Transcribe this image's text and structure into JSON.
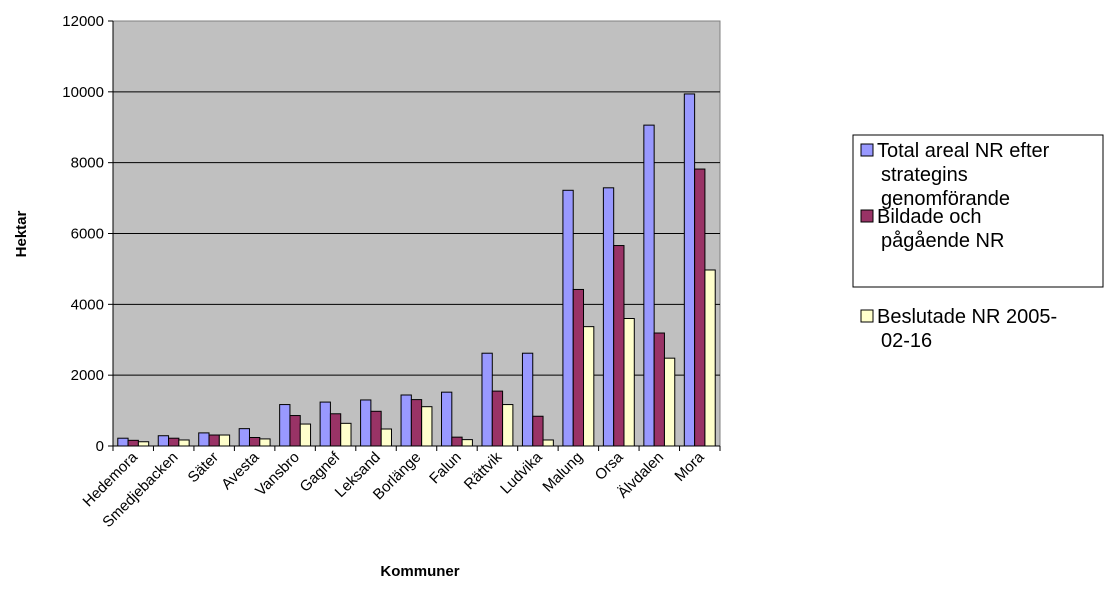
{
  "chart_data": {
    "type": "bar",
    "xlabel": "Kommuner",
    "ylabel": "Hektar",
    "ylim": [
      0,
      12000
    ],
    "yticks": [
      0,
      2000,
      4000,
      6000,
      8000,
      10000,
      12000
    ],
    "grid": true,
    "legend_position": "right",
    "categories": [
      "Hedemora",
      "Smedjebacken",
      "Säter",
      "Avesta",
      "Vansbro",
      "Gagnef",
      "Leksand",
      "Borlänge",
      "Falun",
      "Rättvik",
      "Ludvika",
      "Malung",
      "Orsa",
      "Älvdalen",
      "Mora"
    ],
    "series": [
      {
        "name": "Total areal NR efter strategins genomförande",
        "color": "#9999ff",
        "legend_lines": [
          "Total areal NR efter",
          "strategins",
          "genomförande"
        ],
        "values": [
          220,
          290,
          370,
          490,
          1170,
          1240,
          1300,
          1440,
          1520,
          2620,
          2620,
          7220,
          7290,
          9060,
          9940
        ]
      },
      {
        "name": "Bildade och pågående NR",
        "color": "#993366",
        "legend_lines": [
          "Bildade och",
          "pågående NR"
        ],
        "values": [
          160,
          220,
          310,
          240,
          860,
          910,
          980,
          1310,
          250,
          1550,
          840,
          4420,
          5660,
          3190,
          7820
        ]
      },
      {
        "name": "Beslutade NR 2005-02-16",
        "color": "#ffffcc",
        "legend_lines": [
          "Beslutade NR 2005-",
          "02-16"
        ],
        "values": [
          120,
          170,
          310,
          200,
          620,
          640,
          480,
          1110,
          180,
          1170,
          170,
          3370,
          3600,
          2480,
          4970
        ]
      }
    ]
  }
}
